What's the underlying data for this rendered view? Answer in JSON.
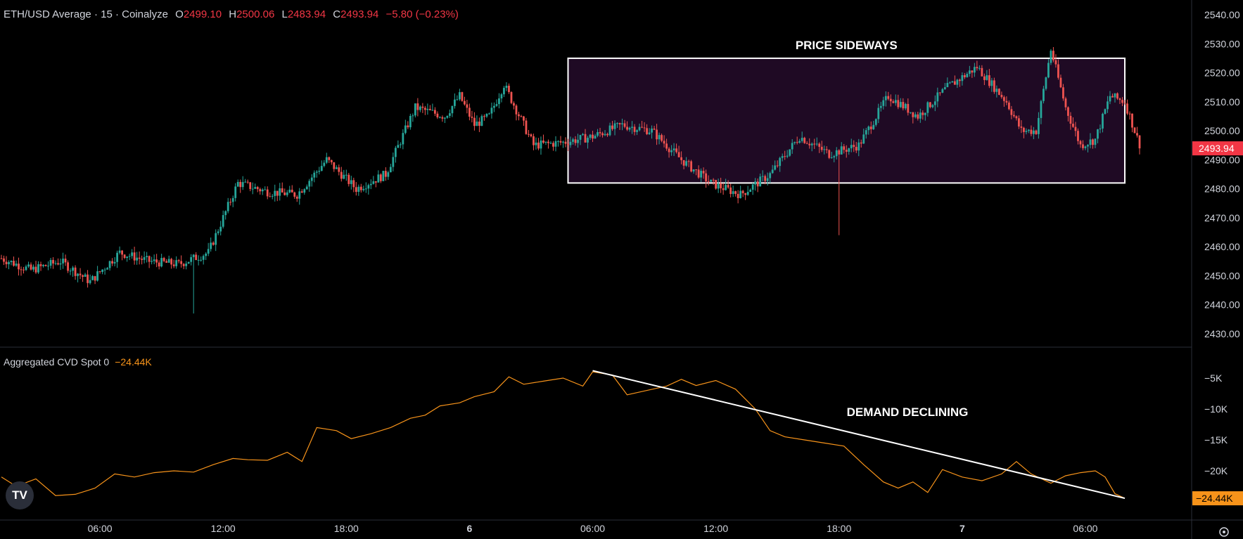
{
  "header": {
    "symbol": "ETH/USD Average · 15 · Coinalyze",
    "o_label": "O",
    "o": "2499.10",
    "h_label": "H",
    "h": "2500.06",
    "l_label": "L",
    "l": "2483.94",
    "c_label": "C",
    "c": "2493.94",
    "change": "−5.80 (−0.23%)"
  },
  "cvd_header": {
    "label": "Aggregated CVD Spot 0",
    "value": "−24.44K"
  },
  "annotations": {
    "box_label": "PRICE SIDEWAYS",
    "trend_label": "DEMAND DECLINING"
  },
  "logo": "TV",
  "colors": {
    "up": "#26a69a",
    "down": "#ef5350",
    "cvd": "#f7931a",
    "box_fill": "#1f0a24",
    "price_tag": "#f23645"
  },
  "chart_data": [
    {
      "type": "candlestick",
      "series_name": "ETH/USD Average · 15 · Coinalyze",
      "ylim": [
        2425,
        2545
      ],
      "y_ticks": [
        "2540.00",
        "2530.00",
        "2520.00",
        "2510.00",
        "2500.00",
        "2490.00",
        "2480.00",
        "2470.00",
        "2460.00",
        "2450.00",
        "2440.00",
        "2430.00"
      ],
      "last_price_label": "2493.94",
      "path_key_points": [
        [
          0,
          2456
        ],
        [
          12,
          2452
        ],
        [
          24,
          2455
        ],
        [
          36,
          2448
        ],
        [
          48,
          2458
        ],
        [
          60,
          2455
        ],
        [
          72,
          2454
        ],
        [
          84,
          2458
        ],
        [
          96,
          2482
        ],
        [
          108,
          2479
        ],
        [
          120,
          2478
        ],
        [
          132,
          2490
        ],
        [
          138,
          2485
        ],
        [
          144,
          2480
        ],
        [
          156,
          2485
        ],
        [
          168,
          2508
        ],
        [
          180,
          2505
        ],
        [
          186,
          2512
        ],
        [
          192,
          2502
        ],
        [
          198,
          2505
        ],
        [
          204,
          2516
        ],
        [
          216,
          2495
        ],
        [
          228,
          2496
        ],
        [
          240,
          2498
        ],
        [
          252,
          2502
        ],
        [
          264,
          2500
        ],
        [
          276,
          2490
        ],
        [
          288,
          2482
        ],
        [
          300,
          2478
        ],
        [
          312,
          2485
        ],
        [
          324,
          2498
        ],
        [
          336,
          2492
        ],
        [
          348,
          2495
        ],
        [
          360,
          2512
        ],
        [
          372,
          2505
        ],
        [
          384,
          2515
        ],
        [
          396,
          2522
        ],
        [
          408,
          2510
        ],
        [
          414,
          2500
        ],
        [
          420,
          2500
        ],
        [
          426,
          2528
        ],
        [
          432,
          2508
        ],
        [
          438,
          2495
        ],
        [
          444,
          2497
        ],
        [
          450,
          2512
        ],
        [
          456,
          2510
        ],
        [
          462,
          2495
        ]
      ],
      "noise_seed": 7,
      "outlier_wicks": [
        {
          "index": 78,
          "low": 2437
        },
        {
          "index": 340,
          "low": 2464
        }
      ],
      "x_ticks": [
        {
          "index": 40,
          "label": "06:00",
          "bold": false
        },
        {
          "index": 90,
          "label": "12:00",
          "bold": false
        },
        {
          "index": 140,
          "label": "18:00",
          "bold": false
        },
        {
          "index": 190,
          "label": "6",
          "bold": true
        },
        {
          "index": 240,
          "label": "06:00",
          "bold": false
        },
        {
          "index": 290,
          "label": "12:00",
          "bold": false
        },
        {
          "index": 340,
          "label": "18:00",
          "bold": false
        },
        {
          "index": 390,
          "label": "7",
          "bold": true
        },
        {
          "index": 440,
          "label": "06:00",
          "bold": false
        }
      ],
      "box": {
        "x0": 230,
        "x1": 456,
        "y_low": 2482,
        "y_high": 2525
      }
    },
    {
      "type": "line",
      "series_name": "Aggregated CVD Spot 0",
      "ylim": [
        -27000,
        -3000
      ],
      "y_ticks": [
        {
          "v": -5000,
          "label": "−5K"
        },
        {
          "v": -10000,
          "label": "−10K"
        },
        {
          "v": -15000,
          "label": "−15K"
        },
        {
          "v": -20000,
          "label": "−20K"
        }
      ],
      "last_value_label": "−24.44K",
      "points": [
        [
          0,
          -21000
        ],
        [
          6,
          -22500
        ],
        [
          14,
          -21300
        ],
        [
          22,
          -24000
        ],
        [
          30,
          -23800
        ],
        [
          38,
          -22800
        ],
        [
          46,
          -20500
        ],
        [
          54,
          -21000
        ],
        [
          62,
          -20300
        ],
        [
          70,
          -20000
        ],
        [
          78,
          -20200
        ],
        [
          86,
          -19000
        ],
        [
          94,
          -18000
        ],
        [
          100,
          -18200
        ],
        [
          108,
          -18300
        ],
        [
          116,
          -17000
        ],
        [
          122,
          -18500
        ],
        [
          128,
          -13000
        ],
        [
          136,
          -13500
        ],
        [
          142,
          -14800
        ],
        [
          150,
          -14000
        ],
        [
          158,
          -13000
        ],
        [
          166,
          -11500
        ],
        [
          172,
          -11000
        ],
        [
          178,
          -9500
        ],
        [
          186,
          -9000
        ],
        [
          192,
          -8000
        ],
        [
          200,
          -7200
        ],
        [
          206,
          -4800
        ],
        [
          212,
          -6000
        ],
        [
          220,
          -5500
        ],
        [
          228,
          -5000
        ],
        [
          236,
          -6300
        ],
        [
          240,
          -4000
        ],
        [
          248,
          -4500
        ],
        [
          254,
          -7700
        ],
        [
          262,
          -7000
        ],
        [
          270,
          -6300
        ],
        [
          276,
          -5200
        ],
        [
          282,
          -6200
        ],
        [
          290,
          -5400
        ],
        [
          298,
          -6800
        ],
        [
          306,
          -10000
        ],
        [
          312,
          -13500
        ],
        [
          318,
          -14500
        ],
        [
          326,
          -15000
        ],
        [
          334,
          -15500
        ],
        [
          342,
          -16000
        ],
        [
          350,
          -19000
        ],
        [
          358,
          -21800
        ],
        [
          364,
          -22800
        ],
        [
          370,
          -21800
        ],
        [
          376,
          -23500
        ],
        [
          382,
          -19800
        ],
        [
          390,
          -21000
        ],
        [
          398,
          -21600
        ],
        [
          406,
          -20500
        ],
        [
          412,
          -18500
        ],
        [
          418,
          -20500
        ],
        [
          426,
          -22000
        ],
        [
          432,
          -20800
        ],
        [
          438,
          -20300
        ],
        [
          444,
          -20000
        ],
        [
          448,
          -21000
        ],
        [
          452,
          -23700
        ],
        [
          456,
          -24440
        ]
      ],
      "trend_line": [
        [
          240,
          -3800
        ],
        [
          456,
          -24440
        ]
      ]
    }
  ]
}
